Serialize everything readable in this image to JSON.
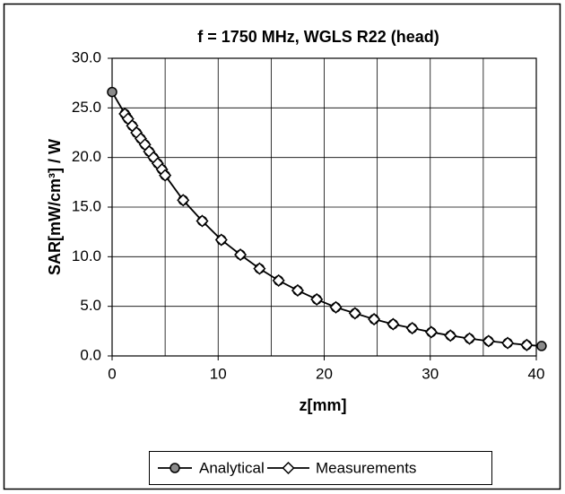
{
  "chart_data": {
    "type": "line",
    "title": "f = 1750 MHz, WGLS R22 (head)",
    "x_label": "z[mm]",
    "y_label": "SAR[mW/cm³] / W",
    "xlim": [
      0,
      40
    ],
    "xticks": [
      0,
      10,
      20,
      30,
      40
    ],
    "xminor": [
      5,
      15,
      25,
      35
    ],
    "ylim": [
      0,
      30
    ],
    "yticks": [
      {
        "value": 0,
        "label": "0.0"
      },
      {
        "value": 5,
        "label": "5.0"
      },
      {
        "value": 10,
        "label": "10.0"
      },
      {
        "value": 15,
        "label": "15.0"
      },
      {
        "value": 20,
        "label": "20.0"
      },
      {
        "value": 25,
        "label": "25.0"
      },
      {
        "value": 30,
        "label": "30.0"
      }
    ],
    "grid": true,
    "legend": "bottom",
    "series": [
      {
        "name": "Analytical",
        "color": "#000000",
        "marker": "circle",
        "x": [
          0,
          1.2,
          1.5,
          1.9,
          2.3,
          2.7,
          3.1,
          3.5,
          3.9,
          4.3,
          4.7,
          5.0,
          6.7,
          8.5,
          10.3,
          12.1,
          13.9,
          15.7,
          17.5,
          19.3,
          21.1,
          22.9,
          24.7,
          26.5,
          28.3,
          30.1,
          31.9,
          33.7,
          35.5,
          37.3,
          39.1,
          40.5
        ],
        "values": [
          26.6,
          24.4,
          23.9,
          23.2,
          22.5,
          21.9,
          21.3,
          20.6,
          20.0,
          19.4,
          18.8,
          18.2,
          15.7,
          13.6,
          11.7,
          10.2,
          8.8,
          7.6,
          6.6,
          5.7,
          4.9,
          4.3,
          3.7,
          3.2,
          2.8,
          2.4,
          2.05,
          1.75,
          1.5,
          1.3,
          1.1,
          1.0
        ]
      },
      {
        "name": "Measurements",
        "color": "#000000",
        "marker": "diamond",
        "x": [
          1.2,
          1.5,
          1.9,
          2.3,
          2.7,
          3.1,
          3.5,
          3.9,
          4.3,
          4.7,
          5.0,
          6.7,
          8.5,
          10.3,
          12.1,
          13.9,
          15.7,
          17.5,
          19.3,
          21.1,
          22.9,
          24.7,
          26.5,
          28.3,
          30.1,
          31.9,
          33.7,
          35.5,
          37.3,
          39.1
        ],
        "values": [
          24.4,
          23.9,
          23.2,
          22.5,
          21.9,
          21.3,
          20.6,
          20.0,
          19.4,
          18.8,
          18.2,
          15.7,
          13.6,
          11.7,
          10.2,
          8.8,
          7.6,
          6.6,
          5.7,
          4.9,
          4.3,
          3.7,
          3.2,
          2.8,
          2.4,
          2.05,
          1.75,
          1.5,
          1.3,
          1.1
        ]
      }
    ]
  }
}
